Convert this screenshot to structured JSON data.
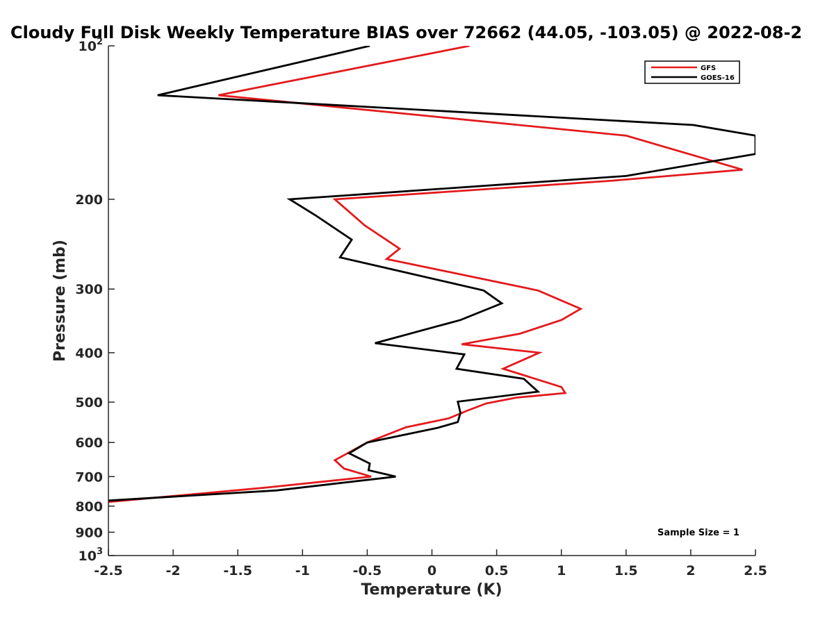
{
  "chart_data": {
    "type": "line",
    "title": "Cloudy Full Disk Weekly Temperature BIAS over 72662 (44.05, -103.05) @ 2022-08-2",
    "xlabel": "Temperature (K)",
    "ylabel": "Pressure (mb)",
    "xlim": [
      -2.5,
      2.5
    ],
    "ylim": [
      100,
      1000
    ],
    "y_scale": "log",
    "y_reversed": true,
    "grid": false,
    "legend_position": "top-right",
    "x_ticks": [
      {
        "value": -2.5,
        "label": "-2.5"
      },
      {
        "value": -2,
        "label": "-2"
      },
      {
        "value": -1.5,
        "label": "-1.5"
      },
      {
        "value": -1,
        "label": "-1"
      },
      {
        "value": -0.5,
        "label": "-0.5"
      },
      {
        "value": 0,
        "label": "0"
      },
      {
        "value": 0.5,
        "label": "0.5"
      },
      {
        "value": 1,
        "label": "1"
      },
      {
        "value": 1.5,
        "label": "1.5"
      },
      {
        "value": 2,
        "label": "2"
      },
      {
        "value": 2.5,
        "label": "2.5"
      }
    ],
    "y_ticks": [
      {
        "value": 100,
        "base": "10",
        "exp": "2"
      },
      {
        "value": 200,
        "label": "200"
      },
      {
        "value": 300,
        "label": "300"
      },
      {
        "value": 400,
        "label": "400"
      },
      {
        "value": 500,
        "label": "500"
      },
      {
        "value": 600,
        "label": "600"
      },
      {
        "value": 700,
        "label": "700"
      },
      {
        "value": 800,
        "label": "800"
      },
      {
        "value": 900,
        "label": "900"
      },
      {
        "value": 1000,
        "base": "10",
        "exp": "3"
      }
    ],
    "series": [
      {
        "name": "GFS",
        "color": "#e31a1c",
        "points": [
          [
            0.29,
            100
          ],
          [
            -1.65,
            125
          ],
          [
            1.5,
            150
          ],
          [
            2.4,
            175
          ],
          [
            1.38,
            184
          ],
          [
            -0.75,
            200
          ],
          [
            -0.52,
            225
          ],
          [
            -0.25,
            250
          ],
          [
            -0.35,
            262
          ],
          [
            0.82,
            302
          ],
          [
            1.15,
            328
          ],
          [
            1.0,
            345
          ],
          [
            0.68,
            367
          ],
          [
            0.23,
            385
          ],
          [
            0.83,
            400
          ],
          [
            0.55,
            430
          ],
          [
            1.0,
            467
          ],
          [
            1.03,
            480
          ],
          [
            0.65,
            490
          ],
          [
            0.42,
            503
          ],
          [
            0.27,
            520
          ],
          [
            0.13,
            538
          ],
          [
            -0.2,
            560
          ],
          [
            -0.5,
            600
          ],
          [
            -0.75,
            650
          ],
          [
            -0.68,
            675
          ],
          [
            -0.47,
            700
          ],
          [
            -1.27,
            735
          ],
          [
            -2.5,
            785
          ]
        ]
      },
      {
        "name": "GOES-16",
        "color": "#000000",
        "points": [
          [
            -0.48,
            100
          ],
          [
            -2.12,
            125
          ],
          [
            2.02,
            143
          ],
          [
            2.5,
            150
          ],
          [
            2.5,
            163
          ],
          [
            1.5,
            180
          ],
          [
            -1.1,
            200
          ],
          [
            -0.9,
            215
          ],
          [
            -0.62,
            240
          ],
          [
            -0.71,
            260
          ],
          [
            0.4,
            302
          ],
          [
            0.54,
            320
          ],
          [
            0.22,
            345
          ],
          [
            -0.44,
            383
          ],
          [
            0.25,
            403
          ],
          [
            0.19,
            430
          ],
          [
            0.71,
            450
          ],
          [
            0.82,
            477
          ],
          [
            0.2,
            499
          ],
          [
            0.22,
            525
          ],
          [
            0.2,
            547
          ],
          [
            0.04,
            562
          ],
          [
            -0.5,
            600
          ],
          [
            -0.64,
            630
          ],
          [
            -0.48,
            660
          ],
          [
            -0.49,
            680
          ],
          [
            -0.28,
            700
          ],
          [
            -1.2,
            745
          ],
          [
            -2.5,
            780
          ]
        ]
      }
    ],
    "annotations": [
      "Sample Size = 1"
    ]
  }
}
